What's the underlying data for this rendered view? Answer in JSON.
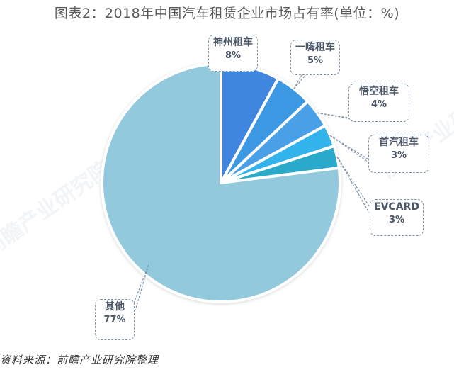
{
  "title": "图表2：2018年中国汽车租赁企业市场占有率(单位：%)",
  "source": "资料来源：前瞻产业研究院整理",
  "watermark": "前瞻产业研究院",
  "chart_data": {
    "type": "pie",
    "title": "图表2：2018年中国汽车租赁企业市场占有率(单位：%)",
    "unit": "%",
    "start_angle": "12 o'clock, clockwise",
    "categories": [
      "神州租车",
      "一嗨租车",
      "悟空租车",
      "首汽租车",
      "EVCARD",
      "其他"
    ],
    "values": [
      8,
      5,
      4,
      3,
      3,
      77
    ],
    "labels": [
      "8%",
      "5%",
      "4%",
      "3%",
      "3%",
      "77%"
    ],
    "colors": [
      "#3f86e0",
      "#3c98e3",
      "#4aa0e6",
      "#33b3ec",
      "#29aacb",
      "#92c9dc"
    ],
    "legend": "callout labels"
  },
  "callouts": [
    {
      "name": "神州租车",
      "value": "8%"
    },
    {
      "name": "一嗨租车",
      "value": "5%"
    },
    {
      "name": "悟空租车",
      "value": "4%"
    },
    {
      "name": "首汽租车",
      "value": "3%"
    },
    {
      "name": "EVCARD",
      "value": "3%"
    },
    {
      "name": "其他",
      "value": "77%"
    }
  ]
}
